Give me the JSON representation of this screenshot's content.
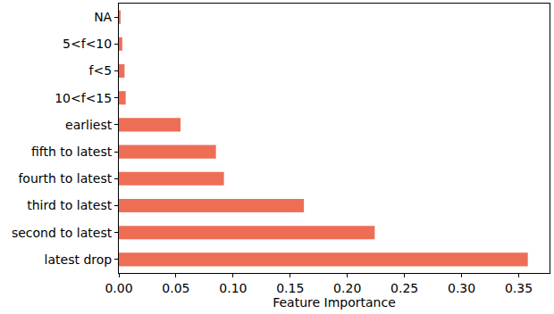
{
  "chart_data": {
    "type": "bar",
    "orientation": "horizontal",
    "x_label": "Feature Importance",
    "categories": [
      "latest drop",
      "second to latest",
      "third to latest",
      "fourth to latest",
      "fifth to latest",
      "earliest",
      "10<f<15",
      "f<5",
      "5<f<10",
      "NA"
    ],
    "values": [
      0.358,
      0.224,
      0.162,
      0.092,
      0.085,
      0.054,
      0.006,
      0.005,
      0.003,
      0.0015
    ],
    "color": "#ee6e55",
    "xlim": [
      0,
      0.377
    ],
    "xticks": [
      {
        "value": 0,
        "label": "0.00"
      },
      {
        "value": 0.05,
        "label": "0.05"
      },
      {
        "value": 0.1,
        "label": "0.10"
      },
      {
        "value": 0.15,
        "label": "0.15"
      },
      {
        "value": 0.2,
        "label": "0.20"
      },
      {
        "value": 0.25,
        "label": "0.25"
      },
      {
        "value": 0.3,
        "label": "0.30"
      },
      {
        "value": 0.35,
        "label": "0.35"
      }
    ],
    "grid": false
  }
}
